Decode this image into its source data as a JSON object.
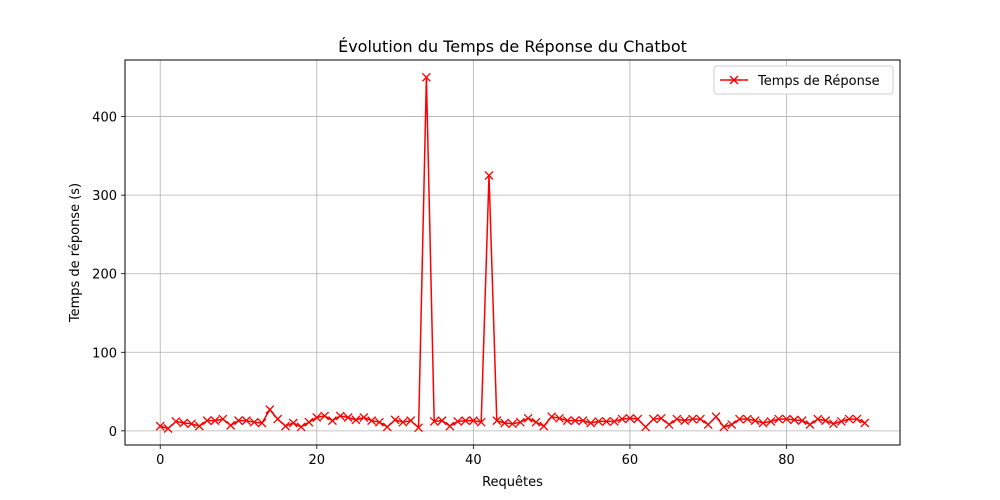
{
  "chart_data": {
    "type": "line",
    "title": "Évolution du Temps de Réponse du Chatbot",
    "xlabel": "Requêtes",
    "ylabel": "Temps de réponse (s)",
    "xlim": [
      -4.5,
      94.5
    ],
    "ylim": [
      -18,
      472
    ],
    "xticks": [
      0,
      20,
      40,
      60,
      80
    ],
    "yticks": [
      0,
      100,
      200,
      300,
      400
    ],
    "grid": true,
    "legend_position": "top-right",
    "series": [
      {
        "name": "Temps de Réponse",
        "color": "#ff0000",
        "marker": "x",
        "x": [
          0,
          1,
          2,
          3,
          4,
          5,
          6,
          7,
          8,
          9,
          10,
          11,
          12,
          13,
          14,
          15,
          16,
          17,
          18,
          19,
          20,
          21,
          22,
          23,
          24,
          25,
          26,
          27,
          28,
          29,
          30,
          31,
          32,
          33,
          34,
          35,
          36,
          37,
          38,
          39,
          40,
          41,
          42,
          43,
          44,
          45,
          46,
          47,
          48,
          49,
          50,
          51,
          52,
          53,
          54,
          55,
          56,
          57,
          58,
          59,
          60,
          61,
          62,
          63,
          64,
          65,
          66,
          67,
          68,
          69,
          70,
          71,
          72,
          73,
          74,
          75,
          76,
          77,
          78,
          79,
          80,
          81,
          82,
          83,
          84,
          85,
          86,
          87,
          88,
          89,
          90
        ],
        "values": [
          6,
          3,
          12,
          10,
          9,
          6,
          13,
          13,
          15,
          7,
          13,
          13,
          11,
          10,
          27,
          15,
          6,
          10,
          5,
          11,
          17,
          19,
          13,
          19,
          17,
          14,
          17,
          13,
          11,
          5,
          14,
          11,
          13,
          4,
          450,
          12,
          13,
          6,
          12,
          13,
          13,
          11,
          325,
          13,
          10,
          9,
          11,
          16,
          11,
          6,
          18,
          16,
          13,
          13,
          13,
          10,
          12,
          12,
          12,
          15,
          16,
          15,
          5,
          15,
          16,
          8,
          15,
          13,
          15,
          15,
          8,
          18,
          5,
          8,
          15,
          15,
          13,
          10,
          12,
          15,
          15,
          14,
          13,
          8,
          15,
          13,
          9,
          12,
          15,
          15,
          10
        ]
      }
    ]
  }
}
